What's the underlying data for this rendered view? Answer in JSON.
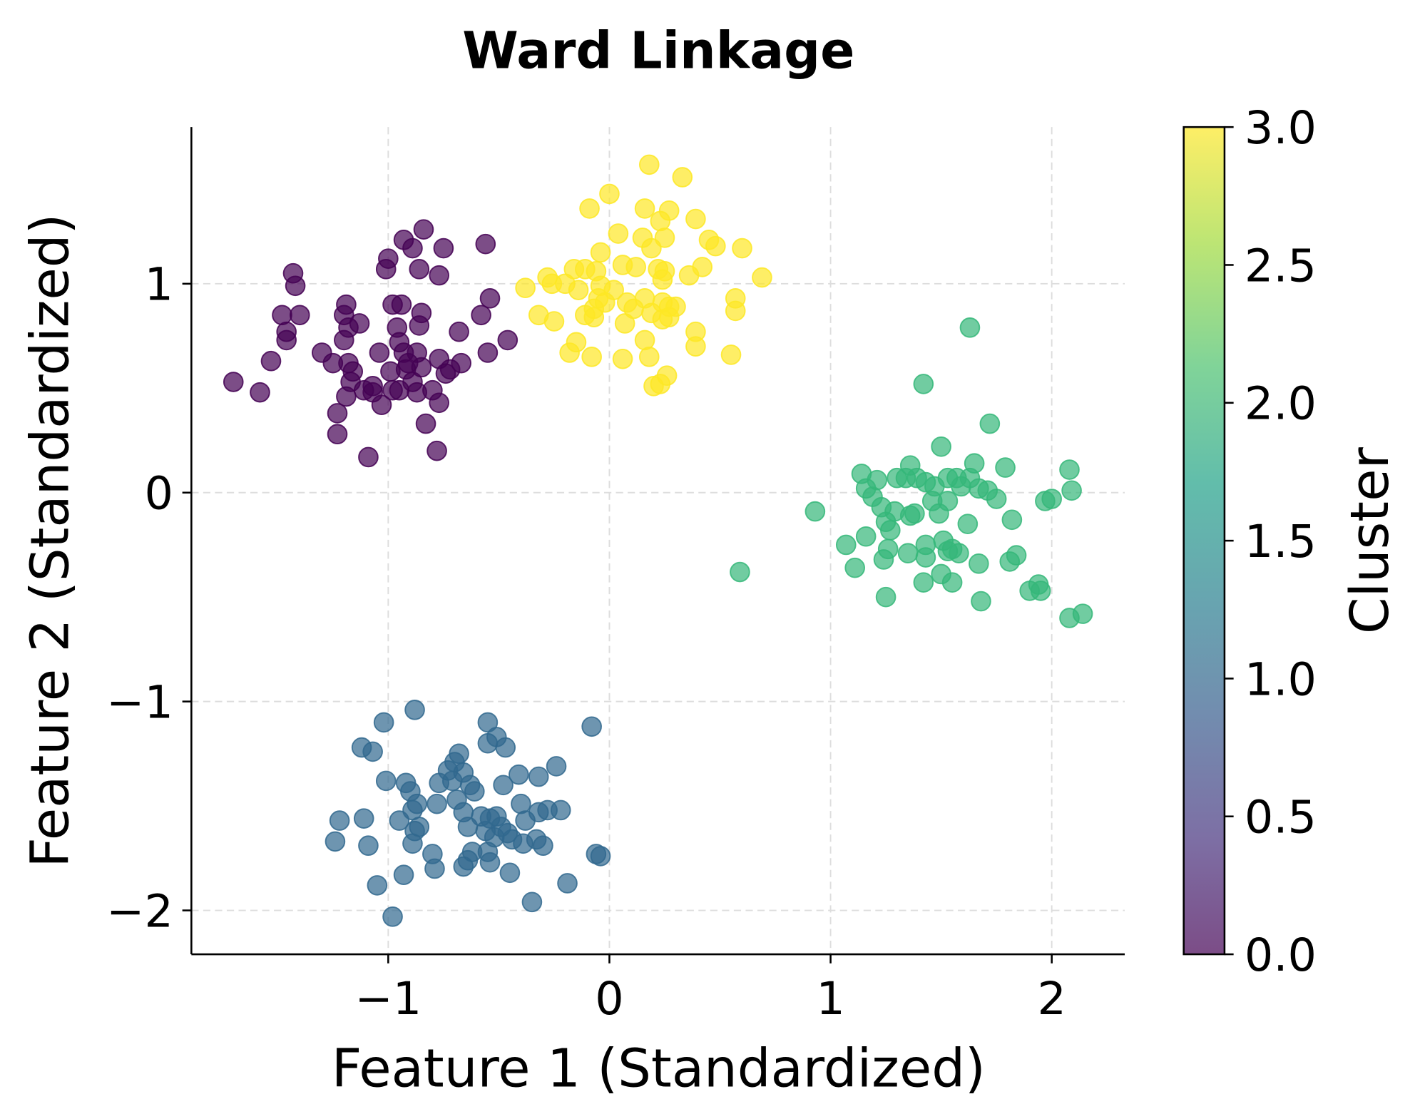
{
  "chart_data": {
    "type": "scatter",
    "title": "Ward Linkage",
    "xlabel": "Feature 1 (Standardized)",
    "ylabel": "Feature 2 (Standardized)",
    "xlim": [
      -1.89,
      2.33
    ],
    "ylim": [
      -2.21,
      1.75
    ],
    "xticks": [
      -1,
      0,
      1,
      2
    ],
    "xtick_labels": [
      "−1",
      "0",
      "1",
      "2"
    ],
    "yticks": [
      -2,
      -1,
      0,
      1
    ],
    "ytick_labels": [
      "−2",
      "−1",
      "0",
      "1"
    ],
    "grid": true,
    "marker_alpha": 0.7,
    "colorbar": {
      "label": "Cluster",
      "range": [
        0,
        3
      ],
      "colormap": "viridis",
      "ticks": [
        0,
        0.5,
        1,
        1.5,
        2,
        2.5,
        3
      ],
      "tick_labels": [
        "0.0",
        "0.5",
        "1.0",
        "1.5",
        "2.0",
        "2.5",
        "3.0"
      ]
    },
    "series": [
      {
        "cluster": 0,
        "color": "#440154",
        "points": [
          [
            -1.7,
            0.53
          ],
          [
            -1.58,
            0.48
          ],
          [
            -1.53,
            0.63
          ],
          [
            -1.43,
            1.05
          ],
          [
            -1.42,
            0.99
          ],
          [
            -1.48,
            0.85
          ],
          [
            -1.46,
            0.77
          ],
          [
            -1.46,
            0.73
          ],
          [
            -1.4,
            0.85
          ],
          [
            -1.3,
            0.67
          ],
          [
            -1.25,
            0.62
          ],
          [
            -1.23,
            0.38
          ],
          [
            -1.23,
            0.28
          ],
          [
            -1.19,
            0.9
          ],
          [
            -1.2,
            0.85
          ],
          [
            -1.18,
            0.79
          ],
          [
            -1.2,
            0.73
          ],
          [
            -1.13,
            0.81
          ],
          [
            -1.18,
            0.62
          ],
          [
            -1.17,
            0.53
          ],
          [
            -1.19,
            0.46
          ],
          [
            -1.16,
            0.58
          ],
          [
            -1.09,
            0.17
          ],
          [
            -1.11,
            0.49
          ],
          [
            -1.07,
            0.51
          ],
          [
            -1.03,
            0.42
          ],
          [
            -1.04,
            0.67
          ],
          [
            -1.01,
            1.07
          ],
          [
            -1.0,
            1.12
          ],
          [
            -0.98,
            0.9
          ],
          [
            -0.94,
            0.9
          ],
          [
            -0.93,
            1.21
          ],
          [
            -0.89,
            1.17
          ],
          [
            -0.86,
            1.07
          ],
          [
            -0.84,
            1.26
          ],
          [
            -0.75,
            1.17
          ],
          [
            -0.77,
            1.04
          ],
          [
            -0.86,
            0.8
          ],
          [
            -0.85,
            0.86
          ],
          [
            -0.96,
            0.79
          ],
          [
            -0.95,
            0.72
          ],
          [
            -0.93,
            0.67
          ],
          [
            -0.91,
            0.62
          ],
          [
            -0.92,
            0.59
          ],
          [
            -0.87,
            0.67
          ],
          [
            -0.85,
            0.6
          ],
          [
            -0.89,
            0.53
          ],
          [
            -0.87,
            0.48
          ],
          [
            -0.83,
            0.33
          ],
          [
            -0.78,
            0.2
          ],
          [
            -0.8,
            0.49
          ],
          [
            -0.77,
            0.43
          ],
          [
            -0.77,
            0.64
          ],
          [
            -0.72,
            0.59
          ],
          [
            -0.74,
            0.57
          ],
          [
            -0.68,
            0.77
          ],
          [
            -0.67,
            0.62
          ],
          [
            -0.58,
            0.85
          ],
          [
            -0.54,
            0.93
          ],
          [
            -0.56,
            1.19
          ],
          [
            -0.55,
            0.67
          ],
          [
            -0.46,
            0.73
          ],
          [
            -0.99,
            0.58
          ],
          [
            -0.98,
            0.49
          ],
          [
            -1.07,
            0.48
          ],
          [
            -0.95,
            0.49
          ]
        ]
      },
      {
        "cluster": 1,
        "color": "#31688e",
        "points": [
          [
            -0.88,
            -1.04
          ],
          [
            -0.08,
            -1.12
          ],
          [
            -1.02,
            -1.1
          ],
          [
            -0.55,
            -1.1
          ],
          [
            -0.55,
            -1.2
          ],
          [
            -0.51,
            -1.17
          ],
          [
            -0.47,
            -1.22
          ],
          [
            -1.12,
            -1.22
          ],
          [
            -1.07,
            -1.24
          ],
          [
            -0.68,
            -1.25
          ],
          [
            -0.7,
            -1.29
          ],
          [
            -0.73,
            -1.33
          ],
          [
            -0.66,
            -1.34
          ],
          [
            -0.71,
            -1.38
          ],
          [
            -1.01,
            -1.38
          ],
          [
            -0.92,
            -1.39
          ],
          [
            -0.9,
            -1.43
          ],
          [
            -0.77,
            -1.39
          ],
          [
            -0.63,
            -1.4
          ],
          [
            -0.61,
            -1.43
          ],
          [
            -0.48,
            -1.4
          ],
          [
            -0.41,
            -1.35
          ],
          [
            -0.32,
            -1.36
          ],
          [
            -0.24,
            -1.31
          ],
          [
            -0.69,
            -1.47
          ],
          [
            -0.66,
            -1.53
          ],
          [
            -0.78,
            -1.49
          ],
          [
            -0.87,
            -1.49
          ],
          [
            -0.89,
            -1.52
          ],
          [
            -0.86,
            -1.6
          ],
          [
            -0.95,
            -1.57
          ],
          [
            -1.11,
            -1.56
          ],
          [
            -1.22,
            -1.57
          ],
          [
            -1.24,
            -1.67
          ],
          [
            -1.09,
            -1.69
          ],
          [
            -0.88,
            -1.62
          ],
          [
            -0.89,
            -1.68
          ],
          [
            -0.8,
            -1.73
          ],
          [
            -0.79,
            -1.8
          ],
          [
            -1.05,
            -1.88
          ],
          [
            -0.93,
            -1.83
          ],
          [
            -0.98,
            -2.03
          ],
          [
            -0.58,
            -1.55
          ],
          [
            -0.54,
            -1.56
          ],
          [
            -0.51,
            -1.55
          ],
          [
            -0.56,
            -1.62
          ],
          [
            -0.52,
            -1.65
          ],
          [
            -0.49,
            -1.6
          ],
          [
            -0.64,
            -1.6
          ],
          [
            -0.4,
            -1.49
          ],
          [
            -0.38,
            -1.57
          ],
          [
            -0.32,
            -1.53
          ],
          [
            -0.28,
            -1.52
          ],
          [
            -0.22,
            -1.52
          ],
          [
            -0.33,
            -1.66
          ],
          [
            -0.3,
            -1.69
          ],
          [
            -0.39,
            -1.68
          ],
          [
            -0.44,
            -1.66
          ],
          [
            -0.46,
            -1.63
          ],
          [
            -0.55,
            -1.72
          ],
          [
            -0.62,
            -1.72
          ],
          [
            -0.64,
            -1.76
          ],
          [
            -0.66,
            -1.79
          ],
          [
            -0.54,
            -1.77
          ],
          [
            -0.45,
            -1.82
          ],
          [
            -0.35,
            -1.96
          ],
          [
            -0.19,
            -1.87
          ],
          [
            -0.06,
            -1.73
          ],
          [
            -0.04,
            -1.74
          ]
        ]
      },
      {
        "cluster": 2,
        "color": "#35b779",
        "points": [
          [
            1.63,
            0.79
          ],
          [
            1.42,
            0.52
          ],
          [
            1.72,
            0.33
          ],
          [
            1.5,
            0.22
          ],
          [
            1.65,
            0.14
          ],
          [
            1.14,
            0.09
          ],
          [
            1.21,
            0.06
          ],
          [
            1.36,
            0.13
          ],
          [
            1.3,
            0.07
          ],
          [
            1.34,
            0.07
          ],
          [
            1.39,
            0.07
          ],
          [
            1.43,
            0.05
          ],
          [
            1.47,
            0.03
          ],
          [
            1.53,
            0.07
          ],
          [
            1.57,
            0.07
          ],
          [
            1.59,
            0.03
          ],
          [
            1.63,
            0.07
          ],
          [
            1.67,
            0.02
          ],
          [
            1.71,
            0.01
          ],
          [
            1.75,
            -0.03
          ],
          [
            1.79,
            0.12
          ],
          [
            2.08,
            0.11
          ],
          [
            2.09,
            0.01
          ],
          [
            2.0,
            -0.03
          ],
          [
            1.97,
            -0.04
          ],
          [
            0.93,
            -0.09
          ],
          [
            1.16,
            0.02
          ],
          [
            1.19,
            -0.02
          ],
          [
            1.23,
            -0.07
          ],
          [
            1.25,
            -0.14
          ],
          [
            1.27,
            -0.18
          ],
          [
            1.29,
            -0.09
          ],
          [
            1.36,
            -0.11
          ],
          [
            1.46,
            -0.04
          ],
          [
            1.49,
            -0.1
          ],
          [
            1.53,
            -0.04
          ],
          [
            1.62,
            -0.15
          ],
          [
            1.82,
            -0.13
          ],
          [
            1.07,
            -0.25
          ],
          [
            1.16,
            -0.21
          ],
          [
            1.24,
            -0.32
          ],
          [
            1.26,
            -0.27
          ],
          [
            1.35,
            -0.29
          ],
          [
            1.43,
            -0.25
          ],
          [
            1.43,
            -0.31
          ],
          [
            1.51,
            -0.23
          ],
          [
            1.53,
            -0.28
          ],
          [
            1.55,
            -0.27
          ],
          [
            1.58,
            -0.29
          ],
          [
            1.84,
            -0.3
          ],
          [
            1.81,
            -0.33
          ],
          [
            1.11,
            -0.36
          ],
          [
            1.5,
            -0.39
          ],
          [
            1.55,
            -0.43
          ],
          [
            1.42,
            -0.43
          ],
          [
            1.67,
            -0.34
          ],
          [
            1.25,
            -0.5
          ],
          [
            1.68,
            -0.52
          ],
          [
            1.9,
            -0.47
          ],
          [
            1.95,
            -0.47
          ],
          [
            1.94,
            -0.44
          ],
          [
            2.08,
            -0.6
          ],
          [
            2.14,
            -0.58
          ],
          [
            0.59,
            -0.38
          ],
          [
            1.38,
            -0.1
          ]
        ]
      },
      {
        "cluster": 3,
        "color": "#fde725",
        "points": [
          [
            0.18,
            1.57
          ],
          [
            0.33,
            1.51
          ],
          [
            0.0,
            1.43
          ],
          [
            -0.09,
            1.36
          ],
          [
            0.16,
            1.36
          ],
          [
            0.27,
            1.35
          ],
          [
            0.23,
            1.3
          ],
          [
            0.39,
            1.31
          ],
          [
            0.04,
            1.24
          ],
          [
            0.15,
            1.22
          ],
          [
            0.25,
            1.22
          ],
          [
            0.19,
            1.17
          ],
          [
            0.45,
            1.21
          ],
          [
            0.48,
            1.18
          ],
          [
            0.6,
            1.17
          ],
          [
            -0.04,
            1.15
          ],
          [
            -0.16,
            1.07
          ],
          [
            -0.11,
            1.07
          ],
          [
            -0.06,
            1.06
          ],
          [
            0.06,
            1.09
          ],
          [
            0.12,
            1.08
          ],
          [
            0.22,
            1.07
          ],
          [
            0.25,
            1.06
          ],
          [
            0.42,
            1.08
          ],
          [
            0.36,
            1.04
          ],
          [
            0.24,
            1.02
          ],
          [
            0.69,
            1.03
          ],
          [
            -0.38,
            0.98
          ],
          [
            -0.28,
            1.03
          ],
          [
            -0.26,
            1.0
          ],
          [
            -0.2,
            1.0
          ],
          [
            -0.14,
            0.97
          ],
          [
            -0.04,
            0.99
          ],
          [
            0.02,
            0.97
          ],
          [
            0.08,
            0.91
          ],
          [
            0.16,
            0.93
          ],
          [
            0.24,
            0.91
          ],
          [
            0.27,
            0.89
          ],
          [
            0.27,
            0.84
          ],
          [
            0.57,
            0.93
          ],
          [
            0.57,
            0.87
          ],
          [
            -0.32,
            0.85
          ],
          [
            -0.25,
            0.82
          ],
          [
            -0.11,
            0.85
          ],
          [
            -0.07,
            0.88
          ],
          [
            -0.05,
            0.93
          ],
          [
            -0.02,
            0.91
          ],
          [
            0.07,
            0.81
          ],
          [
            0.19,
            0.86
          ],
          [
            0.24,
            0.83
          ],
          [
            0.3,
            0.89
          ],
          [
            0.39,
            0.77
          ],
          [
            0.39,
            0.7
          ],
          [
            0.55,
            0.66
          ],
          [
            -0.18,
            0.67
          ],
          [
            -0.15,
            0.72
          ],
          [
            -0.08,
            0.65
          ],
          [
            0.06,
            0.64
          ],
          [
            0.16,
            0.73
          ],
          [
            0.18,
            0.65
          ],
          [
            0.2,
            0.51
          ],
          [
            0.23,
            0.52
          ],
          [
            0.26,
            0.56
          ],
          [
            -0.07,
            0.84
          ],
          [
            0.11,
            0.88
          ]
        ]
      }
    ]
  }
}
